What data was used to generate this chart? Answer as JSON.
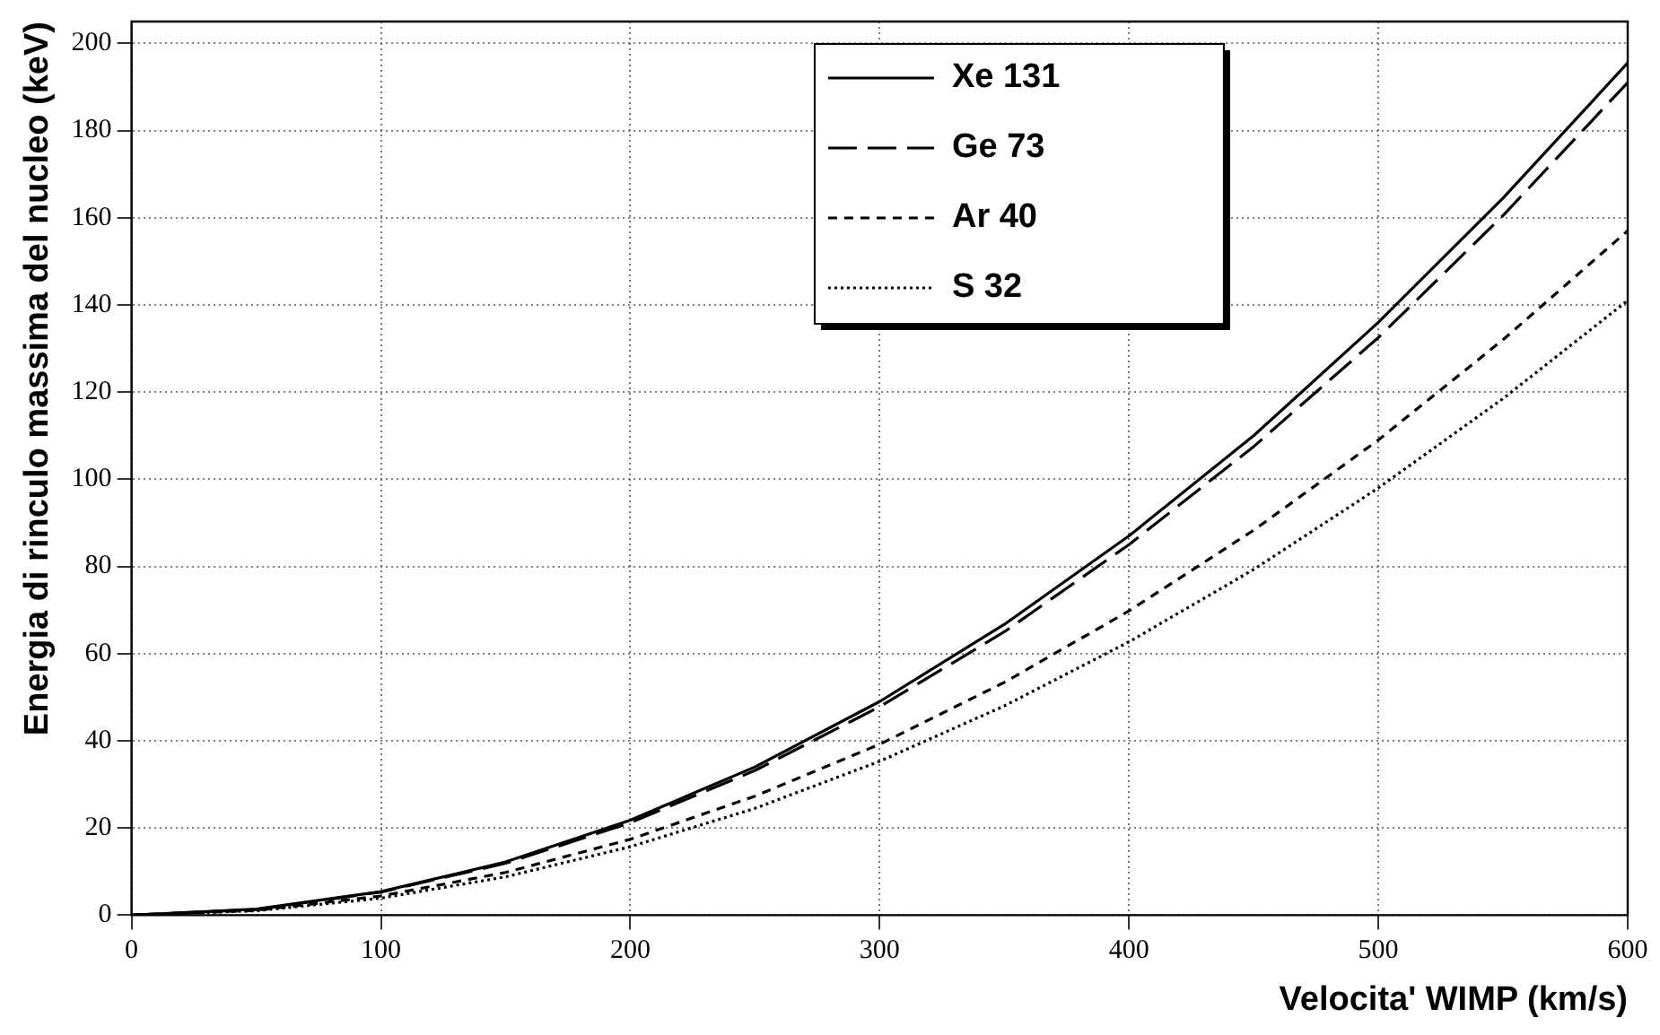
{
  "chart_data": {
    "type": "line",
    "xlabel": "Velocita' WIMP (km/s)",
    "ylabel": "Energia di rinculo massima del nucleo (keV)",
    "x": [
      0,
      50,
      100,
      150,
      200,
      250,
      300,
      350,
      400,
      450,
      500,
      550,
      600
    ],
    "series": [
      {
        "name": "Xe 131",
        "color": "#000000",
        "line_style": "solid",
        "values": [
          0,
          1.4,
          5.4,
          12.2,
          21.8,
          34,
          49,
          66.7,
          87,
          110,
          136,
          164.5,
          195.5
        ]
      },
      {
        "name": "Ge 73",
        "color": "#000000",
        "line_style": "dashed",
        "values": [
          0,
          1.3,
          5.3,
          11.9,
          21.2,
          33.2,
          47.8,
          65,
          85,
          107.5,
          132.5,
          160.5,
          191
        ]
      },
      {
        "name": "Ar 40",
        "color": "#000000",
        "line_style": "short-dashed",
        "values": [
          0,
          1.1,
          4.4,
          9.8,
          17.4,
          27.3,
          39.2,
          53.4,
          69.8,
          88.3,
          109,
          132,
          157
        ]
      },
      {
        "name": "S 32",
        "color": "#000000",
        "line_style": "dotted",
        "values": [
          0,
          1,
          3.9,
          8.8,
          15.7,
          24.5,
          35.3,
          48,
          62.7,
          79.3,
          98,
          118.5,
          141
        ]
      }
    ],
    "xlim": [
      0,
      600
    ],
    "xticks": [
      0,
      100,
      200,
      300,
      400,
      500,
      600
    ],
    "ylim": [
      0,
      205
    ],
    "yticks": [
      0,
      20,
      40,
      60,
      80,
      100,
      120,
      140,
      160,
      180,
      200
    ],
    "grid": true,
    "legend": "top",
    "marker": "none"
  }
}
